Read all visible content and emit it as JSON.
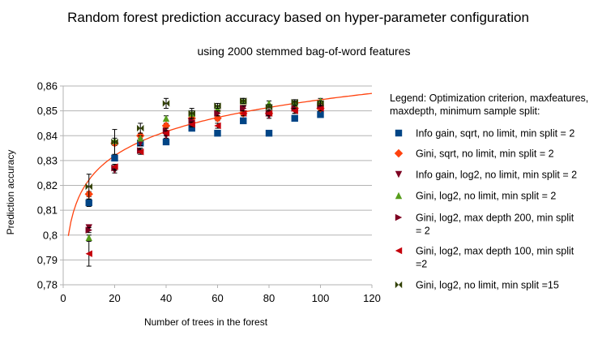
{
  "chart_data": {
    "type": "scatter",
    "title": "Random forest prediction accuracy based on hyper-parameter configuration",
    "subtitle": "using 2000 stemmed bag-of-word features",
    "xlabel": "Number of trees in the forest",
    "ylabel": "Prediction accuracy",
    "xlim": [
      0,
      120
    ],
    "ylim": [
      0.78,
      0.86
    ],
    "xticks": [
      "0",
      "20",
      "40",
      "60",
      "80",
      "100",
      "120"
    ],
    "yticks": [
      "0,78",
      "0,79",
      "0,8",
      "0,81",
      "0,82",
      "0,83",
      "0,84",
      "0,85",
      "0,86"
    ],
    "grid": "horizontal",
    "legend_title": [
      "Legend: Optimization criterion, maxfeatures,",
      "maxdepth, minimum sample split:"
    ],
    "legend_position": "right",
    "x": [
      10,
      20,
      30,
      40,
      50,
      60,
      70,
      80,
      90,
      100
    ],
    "series": [
      {
        "name": [
          "Info gain, sqrt, no limit, min split = 2"
        ],
        "marker": "square",
        "color": "#004586",
        "values": [
          0.813,
          0.831,
          0.837,
          0.8375,
          0.843,
          0.841,
          0.846,
          0.841,
          0.847,
          0.8485
        ],
        "error": [
          0.0015,
          0.001,
          0.001,
          0.001,
          0.001,
          0.001,
          0.001,
          0.001,
          0.001,
          0.001
        ]
      },
      {
        "name": [
          "Gini, sqrt, no limit, min split = 2"
        ],
        "marker": "diamond",
        "color": "#ff420e",
        "values": [
          0.8165,
          0.837,
          0.84,
          0.844,
          0.847,
          0.847,
          0.849,
          0.849,
          0.851,
          0.851
        ],
        "error": [
          0.001,
          0.001,
          0.001,
          0.001,
          0.001,
          0.001,
          0.001,
          0.001,
          0.001,
          0.001
        ]
      },
      {
        "name": [
          "Info gain, log2, no limit, min split = 2"
        ],
        "marker": "triangle-down",
        "color": "#7e0021",
        "values": [
          0.803,
          0.826,
          0.837,
          0.84,
          0.845,
          0.849,
          0.851,
          0.848,
          0.85,
          0.851
        ],
        "error": [
          0.001,
          0.001,
          0.001,
          0.001,
          0.001,
          0.001,
          0.001,
          0.001,
          0.001,
          0.001
        ]
      },
      {
        "name": [
          "Gini, log2, no limit, min split = 2"
        ],
        "marker": "triangle-up",
        "color": "#579d1c",
        "values": [
          0.799,
          0.838,
          0.839,
          0.847,
          0.849,
          0.851,
          0.854,
          0.853,
          0.853,
          0.854
        ],
        "error": [
          0.001,
          0.001,
          0.001,
          0.001,
          0.001,
          0.001,
          0.001,
          0.001,
          0.001,
          0.001
        ]
      },
      {
        "name": [
          "Gini, log2, max depth 200, min split",
          "= 2"
        ],
        "marker": "triangle-right",
        "color": "#7e0021",
        "values": [
          0.802,
          0.827,
          0.834,
          0.842,
          0.846,
          0.849,
          0.851,
          0.849,
          0.851,
          0.852
        ],
        "error": [
          0.001,
          0.001,
          0.001,
          0.001,
          0.001,
          0.001,
          0.001,
          0.001,
          0.001,
          0.001
        ]
      },
      {
        "name": [
          "Gini, log2, max depth 100, min split",
          "=2"
        ],
        "marker": "triangle-left",
        "color": "#c5000b",
        "values": [
          0.7925,
          0.8275,
          0.8335,
          0.841,
          0.8445,
          0.844,
          0.849,
          0.849,
          0.85,
          0.851
        ],
        "error": [
          0.005,
          0.001,
          0.001,
          0.001,
          0.001,
          0.001,
          0.001,
          0.001,
          0.001,
          0.001
        ]
      },
      {
        "name": [
          "Gini, log2, no limit, min split =15"
        ],
        "marker": "bowtie",
        "color": "#314004",
        "values": [
          0.8195,
          0.8375,
          0.843,
          0.853,
          0.849,
          0.852,
          0.854,
          0.8515,
          0.8535,
          0.853
        ],
        "error": [
          0.005,
          0.005,
          0.002,
          0.002,
          0.002,
          0.001,
          0.001,
          0.001,
          0.001,
          0.001
        ]
      }
    ],
    "trendline": {
      "type": "logarithmic",
      "color": "#ff420e",
      "a": 0.79,
      "b": 0.014,
      "x_from": 2,
      "x_to": 120
    }
  }
}
